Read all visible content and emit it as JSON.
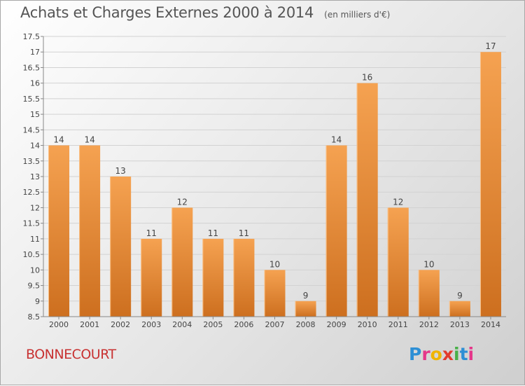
{
  "header": {
    "title": "Achats et Charges Externes 2000 à 2014",
    "unit": "(en milliers d'€)"
  },
  "footer": {
    "commune": "BONNECOURT",
    "brand": [
      "P",
      "r",
      "o",
      "x",
      "i",
      "t",
      "i"
    ]
  },
  "colors": {
    "bar_light": "#f5a251",
    "bar_dark": "#cd6f1f",
    "title": "#555555",
    "commune": "#c83232"
  },
  "chart_data": {
    "type": "bar",
    "title": "Achats et Charges Externes 2000 à 2014",
    "xlabel": "",
    "ylabel": "",
    "categories": [
      "2000",
      "2001",
      "2002",
      "2003",
      "2004",
      "2005",
      "2006",
      "2007",
      "2008",
      "2009",
      "2010",
      "2011",
      "2012",
      "2013",
      "2014"
    ],
    "values": [
      14,
      14,
      13,
      11,
      12,
      11,
      11,
      10,
      9,
      14,
      16,
      12,
      10,
      9,
      17
    ],
    "data_labels": [
      "14",
      "14",
      "13",
      "11",
      "12",
      "11",
      "11",
      "10",
      "9",
      "14",
      "16",
      "12",
      "10",
      "9",
      "17"
    ],
    "ylim": [
      8.5,
      17.5
    ],
    "yticks": [
      "8.5",
      "9",
      "9.5",
      "10",
      "10.5",
      "11",
      "11.5",
      "12",
      "12.5",
      "13",
      "13.5",
      "14",
      "14.5",
      "15",
      "15.5",
      "16",
      "16.5",
      "17",
      "17.5"
    ],
    "grid": "horizontal"
  }
}
